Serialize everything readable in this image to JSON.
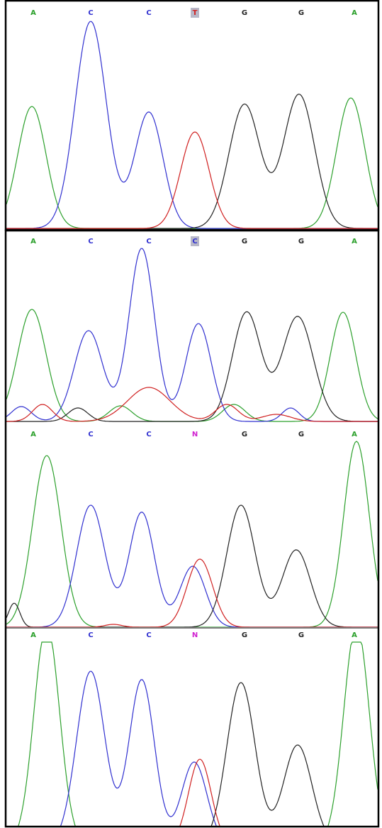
{
  "panels": [
    {
      "bases": [
        "A",
        "C",
        "C",
        "T",
        "G",
        "G",
        "A"
      ]
    },
    {
      "bases": [
        "A",
        "C",
        "C",
        "C",
        "G",
        "G",
        "A"
      ]
    },
    {
      "bases": [
        "A",
        "C",
        "C",
        "N",
        "G",
        "G",
        "A"
      ]
    },
    {
      "bases": [
        "A",
        "C",
        "C",
        "N",
        "G",
        "G",
        "A"
      ]
    }
  ]
}
